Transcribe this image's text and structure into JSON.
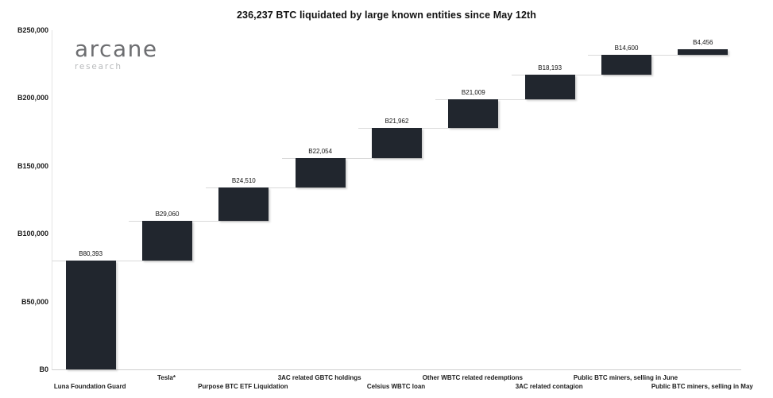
{
  "branding": {
    "name": "arcane",
    "sub": "research"
  },
  "currency_symbol": "₿",
  "chart_data": {
    "type": "bar",
    "subtype": "waterfall",
    "title": "236,237 BTC liquidated by large known entities since May 12th",
    "total_btc": "236,237",
    "categories": [
      "Luna Foundation Guard",
      "Tesla*",
      "Purpose BTC ETF Liquidation",
      "3AC related GBTC holdings",
      "Celsius WBTC loan",
      "Other WBTC related redemptions",
      "3AC related contagion",
      "Public BTC miners, selling in June",
      "Public BTC miners, selling in May"
    ],
    "values": [
      80393,
      29060,
      24510,
      22054,
      21962,
      21009,
      18193,
      14600,
      4456
    ],
    "value_labels": [
      "₿80,393",
      "₿29,060",
      "₿24,510",
      "₿22,054",
      "₿21,962",
      "₿21,009",
      "₿18,193",
      "₿14,600",
      "₿4,456"
    ],
    "cumulative": [
      80393,
      109453,
      133963,
      156017,
      177979,
      198988,
      217181,
      231781,
      236237
    ],
    "xlabel": "",
    "ylabel": "",
    "ylim": [
      0,
      250000
    ],
    "y_ticks": [
      {
        "value": 0,
        "label": "₿0"
      },
      {
        "value": 50000,
        "label": "₿50,000"
      },
      {
        "value": 100000,
        "label": "₿100,000"
      },
      {
        "value": 150000,
        "label": "₿150,000"
      },
      {
        "value": 200000,
        "label": "₿200,000"
      },
      {
        "value": 250000,
        "label": "₿250,000"
      }
    ],
    "grid": false,
    "legend": false,
    "colors": {
      "bar": "#21262e",
      "connector": "#d9d9d9",
      "axis_line": "#cfcfcf",
      "text": "#1a1a1a",
      "background": "#ffffff"
    }
  }
}
